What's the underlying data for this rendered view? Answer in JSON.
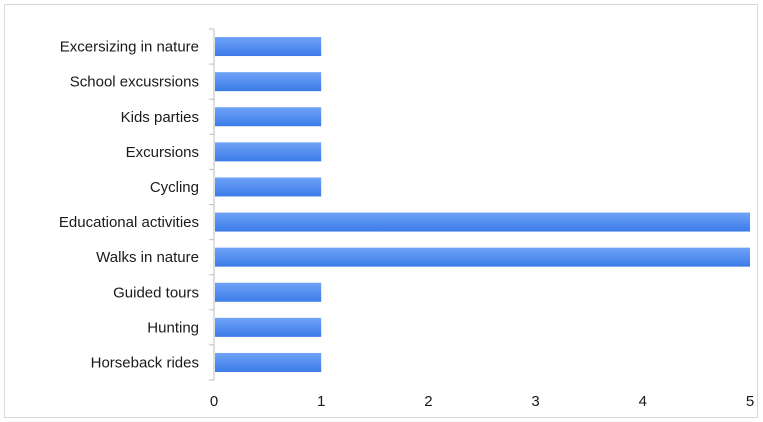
{
  "chart_data": {
    "type": "bar",
    "orientation": "horizontal",
    "title": "",
    "xlabel": "",
    "ylabel": "",
    "categories": [
      "Excersizing in nature",
      "School excusrsions",
      "Kids parties",
      "Excursions",
      "Cycling",
      "Educational activities",
      "Walks in nature",
      "Guided tours",
      "Hunting",
      "Horseback rides"
    ],
    "values": [
      1,
      1,
      1,
      1,
      1,
      5,
      5,
      1,
      1,
      1
    ],
    "xlim": [
      0,
      5
    ],
    "xticks": [
      "0",
      "1",
      "2",
      "3",
      "4",
      "5"
    ],
    "grid": false,
    "legend": "none",
    "bar_color": "#3b7be8",
    "bar_color_light": "#6fa3f7"
  }
}
